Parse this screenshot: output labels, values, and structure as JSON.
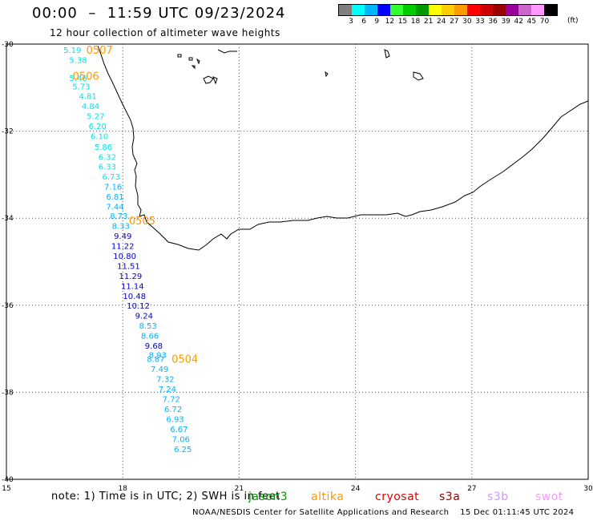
{
  "header": {
    "title": "00:00  –  11:59 UTC 09/23/2024",
    "subtitle": "12 hour collection of altimeter wave heights"
  },
  "scale": {
    "colors": [
      "#7f7f7f",
      "#00ffff",
      "#00b4ff",
      "#0000ff",
      "#33ff33",
      "#00cc00",
      "#009900",
      "#ffff00",
      "#ffcc00",
      "#ff9900",
      "#ff0000",
      "#cc0000",
      "#990000",
      "#990099",
      "#cc66cc",
      "#ff99ff",
      "#000000"
    ],
    "labels": [
      "3",
      "6",
      "9",
      "12",
      "15",
      "18",
      "21",
      "24",
      "27",
      "30",
      "33",
      "36",
      "39",
      "42",
      "45",
      "70"
    ],
    "unit": "(ft)"
  },
  "axes": {
    "lon_ticks": [
      "15",
      "18",
      "21",
      "24",
      "27",
      "30"
    ],
    "lat_ticks": [
      "-30",
      "-32",
      "-34",
      "-36",
      "-38",
      "-40"
    ]
  },
  "tracks": [
    {
      "id": "0507",
      "label": "0507",
      "label_color": "#ff9900",
      "points": [
        {
          "v": "5.19",
          "c": "#00e6e6",
          "lat": -30.13,
          "lon": 16.7
        },
        {
          "v": "5.38",
          "c": "#00e6e6",
          "lat": -30.36,
          "lon": 16.85
        }
      ]
    },
    {
      "id": "0506",
      "label": "0506",
      "label_color": "#ff9900",
      "points": [
        {
          "v": "5.46",
          "c": "#00e6e6",
          "lat": -30.77,
          "lon": 16.85
        },
        {
          "v": "5.73",
          "c": "#00e6e6",
          "lat": -30.97,
          "lon": 16.93
        },
        {
          "v": "4.81",
          "c": "#00e6e6",
          "lat": -31.19,
          "lon": 17.1
        },
        {
          "v": "4.84",
          "c": "#00e6e6",
          "lat": -31.42,
          "lon": 17.17
        },
        {
          "v": "5.27",
          "c": "#00e6e6",
          "lat": -31.65,
          "lon": 17.3
        },
        {
          "v": "6.20",
          "c": "#00e6e6",
          "lat": -31.88,
          "lon": 17.35
        },
        {
          "v": "6.10",
          "c": "#00e6e6",
          "lat": -32.11,
          "lon": 17.4
        },
        {
          "v": "5.86",
          "c": "#00e6e6",
          "lat": -32.36,
          "lon": 17.5
        },
        {
          "v": "6.32",
          "c": "#00e6e6",
          "lat": -32.59,
          "lon": 17.6
        },
        {
          "v": "6.33",
          "c": "#00e6e6",
          "lat": -32.81,
          "lon": 17.6
        },
        {
          "v": "6.73",
          "c": "#00e6e6",
          "lat": -33.04,
          "lon": 17.7
        },
        {
          "v": "7.16",
          "c": "#00b4ff",
          "lat": -33.27,
          "lon": 17.75
        },
        {
          "v": "6.81",
          "c": "#00b4ff",
          "lat": -33.5,
          "lon": 17.8
        },
        {
          "v": "7.44",
          "c": "#00b4ff",
          "lat": -33.73,
          "lon": 17.8
        },
        {
          "v": "8.73",
          "c": "#00b4ff",
          "lat": -33.94,
          "lon": 17.9
        },
        {
          "v": "8.33",
          "c": "#00b4ff",
          "lat": -34.17,
          "lon": 17.95
        },
        {
          "v": "9.49",
          "c": "#0000cc",
          "lat": -34.4,
          "lon": 18.0
        },
        {
          "v": "11.22",
          "c": "#0000cc",
          "lat": -34.63,
          "lon": 18.0
        },
        {
          "v": "10.80",
          "c": "#0000cc",
          "lat": -34.86,
          "lon": 18.05
        },
        {
          "v": "11.51",
          "c": "#0000cc",
          "lat": -35.09,
          "lon": 18.15
        },
        {
          "v": "11.29",
          "c": "#0000cc",
          "lat": -35.32,
          "lon": 18.2
        },
        {
          "v": "11.14",
          "c": "#0000cc",
          "lat": -35.55,
          "lon": 18.25
        },
        {
          "v": "10.48",
          "c": "#0000cc",
          "lat": -35.78,
          "lon": 18.3
        },
        {
          "v": "10.12",
          "c": "#0000cc",
          "lat": -36.0,
          "lon": 18.4
        },
        {
          "v": "9.24",
          "c": "#0000cc",
          "lat": -36.23,
          "lon": 18.55
        },
        {
          "v": "8.53",
          "c": "#00b4ff",
          "lat": -36.46,
          "lon": 18.65
        },
        {
          "v": "8.66",
          "c": "#00b4ff",
          "lat": -36.69,
          "lon": 18.7
        },
        {
          "v": "9.68",
          "c": "#0000cc",
          "lat": -36.92,
          "lon": 18.8
        }
      ]
    },
    {
      "id": "0505",
      "label": "0505",
      "label_color": "#ff9900",
      "points": []
    },
    {
      "id": "0504",
      "label": "0504",
      "label_color": "#ff9900",
      "points": [
        {
          "v": "8.93",
          "c": "#00b4ff",
          "lat": -37.14,
          "lon": 18.9
        },
        {
          "v": "8.87",
          "c": "#00b4ff",
          "lat": -37.23,
          "lon": 18.85
        },
        {
          "v": "7.49",
          "c": "#00b4ff",
          "lat": -37.46,
          "lon": 18.95
        },
        {
          "v": "7.32",
          "c": "#00b4ff",
          "lat": -37.69,
          "lon": 19.1
        },
        {
          "v": "7.24",
          "c": "#00b4ff",
          "lat": -37.92,
          "lon": 19.15
        },
        {
          "v": "7.72",
          "c": "#00b4ff",
          "lat": -38.15,
          "lon": 19.25
        },
        {
          "v": "6.72",
          "c": "#00b4ff",
          "lat": -38.38,
          "lon": 19.3
        },
        {
          "v": "6.93",
          "c": "#00b4ff",
          "lat": -38.61,
          "lon": 19.35
        },
        {
          "v": "6.67",
          "c": "#00b4ff",
          "lat": -38.84,
          "lon": 19.45
        },
        {
          "v": "7.06",
          "c": "#00b4ff",
          "lat": -39.07,
          "lon": 19.5
        },
        {
          "v": "6.25",
          "c": "#00b4ff",
          "lat": -39.3,
          "lon": 19.55
        }
      ]
    }
  ],
  "footer": {
    "note": "note:  1) Time is in UTC; 2) SWH is in feet",
    "satellites": [
      {
        "name": "jason3",
        "color": "#009900"
      },
      {
        "name": "altika",
        "color": "#ff9900"
      },
      {
        "name": "cryosat",
        "color": "#dd0000"
      },
      {
        "name": "s3a",
        "color": "#990000"
      },
      {
        "name": "s3b",
        "color": "#cc99ff"
      },
      {
        "name": "swot",
        "color": "#ff99ff"
      }
    ],
    "credit": "NOAA/NESDIS Center for Satellite Applications and Research    15 Dec 01:11:45 UTC 2024"
  }
}
